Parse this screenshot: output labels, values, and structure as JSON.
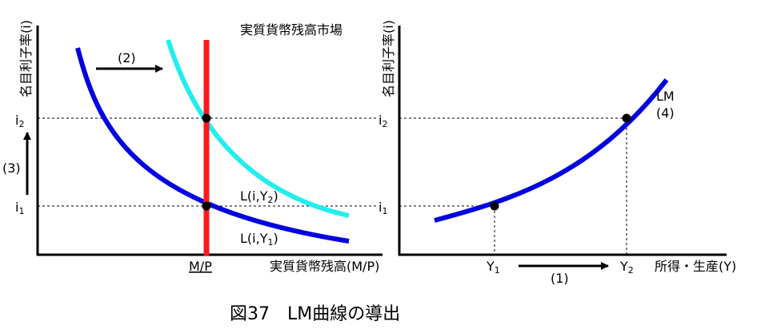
{
  "caption": "図37　LM曲線の導出",
  "left_panel": {
    "title": "実質貨幣残高市場",
    "y_axis_label": "名目利子率(i)",
    "x_axis_label": "実質貨幣残高(M/P)",
    "x_tick": "M/P",
    "y_ticks": [
      {
        "base": "i",
        "sub": "2"
      },
      {
        "base": "i",
        "sub": "1"
      }
    ],
    "curve_high": {
      "prefix": "L(i,Y",
      "sub": "2",
      "suffix": ")"
    },
    "curve_low": {
      "prefix": "L(i,Y",
      "sub": "1",
      "suffix": ")"
    },
    "shift_label": "(2)",
    "rise_label": "(3)"
  },
  "right_panel": {
    "y_axis_label": "名目利子率(i)",
    "x_axis_label": "所得・生産(Y)",
    "x_ticks": [
      {
        "base": "Y",
        "sub": "1"
      },
      {
        "base": "Y",
        "sub": "2"
      }
    ],
    "y_ticks": [
      {
        "base": "i",
        "sub": "2"
      },
      {
        "base": "i",
        "sub": "1"
      }
    ],
    "curve_label": "LM",
    "curve_label_num": "(4)",
    "move_label": "(1)"
  },
  "colors": {
    "curve_low": "#0000e0",
    "curve_high": "#22eeee",
    "money_supply": "#ff1a1a",
    "lm": "#0000e0",
    "axis": "#000000"
  }
}
